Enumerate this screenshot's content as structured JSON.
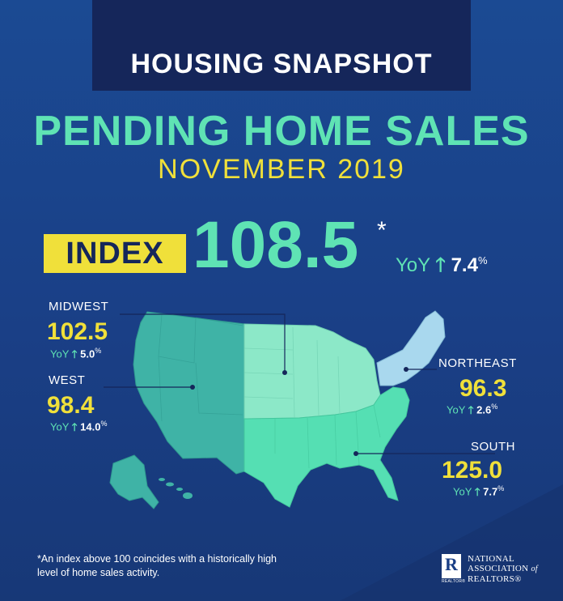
{
  "header": {
    "title": "HOUSING SNAPSHOT",
    "headline": "PENDING HOME SALES",
    "subhead": "NOVEMBER 2019"
  },
  "index": {
    "label": "INDEX",
    "value": "108.5",
    "asterisk": "*",
    "yoy_label": "YoY",
    "yoy_value": "7.4",
    "yoy_unit": "%"
  },
  "regions": {
    "midwest": {
      "name": "MIDWEST",
      "value": "102.5",
      "yoy_label": "YoY",
      "yoy_value": "5.0",
      "yoy_unit": "%"
    },
    "west": {
      "name": "WEST",
      "value": "98.4",
      "yoy_label": "YoY",
      "yoy_value": "14.0",
      "yoy_unit": "%"
    },
    "northeast": {
      "name": "NORTHEAST",
      "value": "96.3",
      "yoy_label": "YoY",
      "yoy_value": "2.6",
      "yoy_unit": "%"
    },
    "south": {
      "name": "SOUTH",
      "value": "125.0",
      "yoy_label": "YoY",
      "yoy_value": "7.7",
      "yoy_unit": "%"
    }
  },
  "footnote": "*An index above 100 coincides with a historically high level of home sales activity.",
  "logo": {
    "mark": "R",
    "mark_sub": "REALTOR®",
    "line1": "NATIONAL",
    "line2": "ASSOCIATION",
    "line2_suffix": "of",
    "line3": "REALTORS®"
  },
  "colors": {
    "background": "#1a3f86",
    "title_box": "#15265a",
    "accent_green": "#5fe3b4",
    "accent_yellow": "#f0e03a",
    "west_region": "#3fb3a6",
    "midwest_region": "#8ce8c8",
    "northeast_region": "#a9d8ee",
    "south_region": "#55dfb3"
  }
}
